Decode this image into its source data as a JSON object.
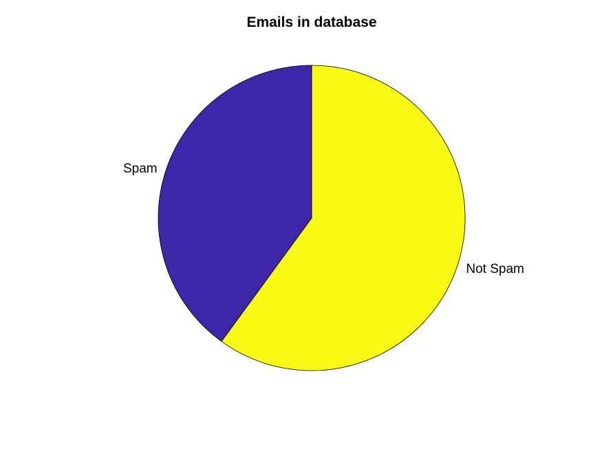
{
  "chart_data": {
    "type": "pie",
    "title": "Emails in database",
    "slices": [
      {
        "label": "Not Spam",
        "value": 60,
        "color": "#f9fa14"
      },
      {
        "label": "Spam",
        "value": 40,
        "color": "#3e26a8"
      }
    ],
    "start": "top",
    "direction": "clockwise",
    "outline_color": "#000000",
    "legend": "none",
    "grid": false
  }
}
